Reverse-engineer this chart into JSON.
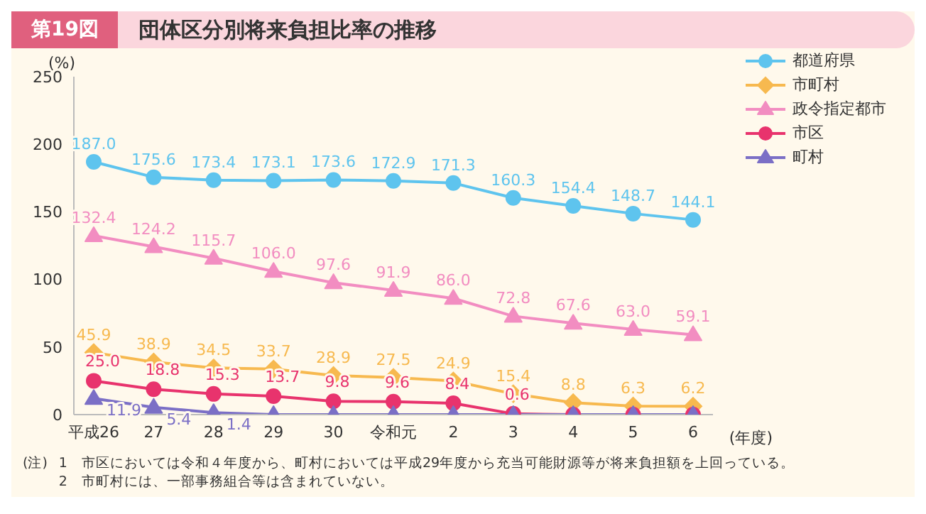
{
  "chart_data": {
    "type": "line",
    "title": "団体区分別将来負担比率の推移",
    "ylabel": "(%)",
    "xlabel": "(年度)",
    "categories": [
      "平成26",
      "27",
      "28",
      "29",
      "30",
      "令和元",
      "2",
      "3",
      "4",
      "5",
      "6"
    ],
    "series": [
      {
        "name": "都道府県",
        "color": "#5ec4ee",
        "marker": "circle",
        "values": [
          187.0,
          175.6,
          173.4,
          173.1,
          173.6,
          172.9,
          171.3,
          160.3,
          154.4,
          148.7,
          144.1
        ],
        "value_labels": [
          "187.0",
          "175.6",
          "173.4",
          "173.1",
          "173.6",
          "172.9",
          "171.3",
          "160.3",
          "154.4",
          "148.7",
          "144.1"
        ]
      },
      {
        "name": "市町村",
        "color": "#f7b94f",
        "marker": "diamond",
        "values": [
          45.9,
          38.9,
          34.5,
          33.7,
          28.9,
          27.5,
          24.9,
          15.4,
          8.8,
          6.3,
          6.2
        ],
        "value_labels": [
          "45.9",
          "38.9",
          "34.5",
          "33.7",
          "28.9",
          "27.5",
          "24.9",
          "15.4",
          "8.8",
          "6.3",
          "6.2"
        ]
      },
      {
        "name": "政令指定都市",
        "color": "#f28dc1",
        "marker": "triangle",
        "values": [
          132.4,
          124.2,
          115.7,
          106.0,
          97.6,
          91.9,
          86.0,
          72.8,
          67.6,
          63.0,
          59.1
        ],
        "value_labels": [
          "132.4",
          "124.2",
          "115.7",
          "106.0",
          "97.6",
          "91.9",
          "86.0",
          "72.8",
          "67.6",
          "63.0",
          "59.1"
        ]
      },
      {
        "name": "市区",
        "color": "#e8336d",
        "marker": "circle",
        "values": [
          25.0,
          18.8,
          15.3,
          13.7,
          9.8,
          9.6,
          8.4,
          0.6,
          0,
          0,
          0
        ],
        "value_labels": [
          "25.0",
          "18.8",
          "15.3",
          "13.7",
          "9.8",
          "9.6",
          "8.4",
          "0.6",
          null,
          null,
          null
        ]
      },
      {
        "name": "町村",
        "color": "#7b6fc6",
        "marker": "triangle",
        "values": [
          11.9,
          5.4,
          1.4,
          0,
          0,
          0,
          0,
          0,
          0,
          0,
          0
        ],
        "value_labels": [
          "11.9",
          "5.4",
          "1.4",
          null,
          null,
          null,
          null,
          null,
          null,
          null,
          null
        ]
      }
    ],
    "ylim": [
      0,
      250
    ],
    "yticks": [
      0,
      50,
      100,
      150,
      200,
      250
    ],
    "grid": false,
    "legend": "top right",
    "annotations": [
      "第19図",
      "(注)",
      "1　市区においては令和４年度から、町村においては平成29年度から充当可能財源等が将来負担額を上回っている。",
      "2　市町村には、一部事務組合等は含まれていない。"
    ]
  }
}
